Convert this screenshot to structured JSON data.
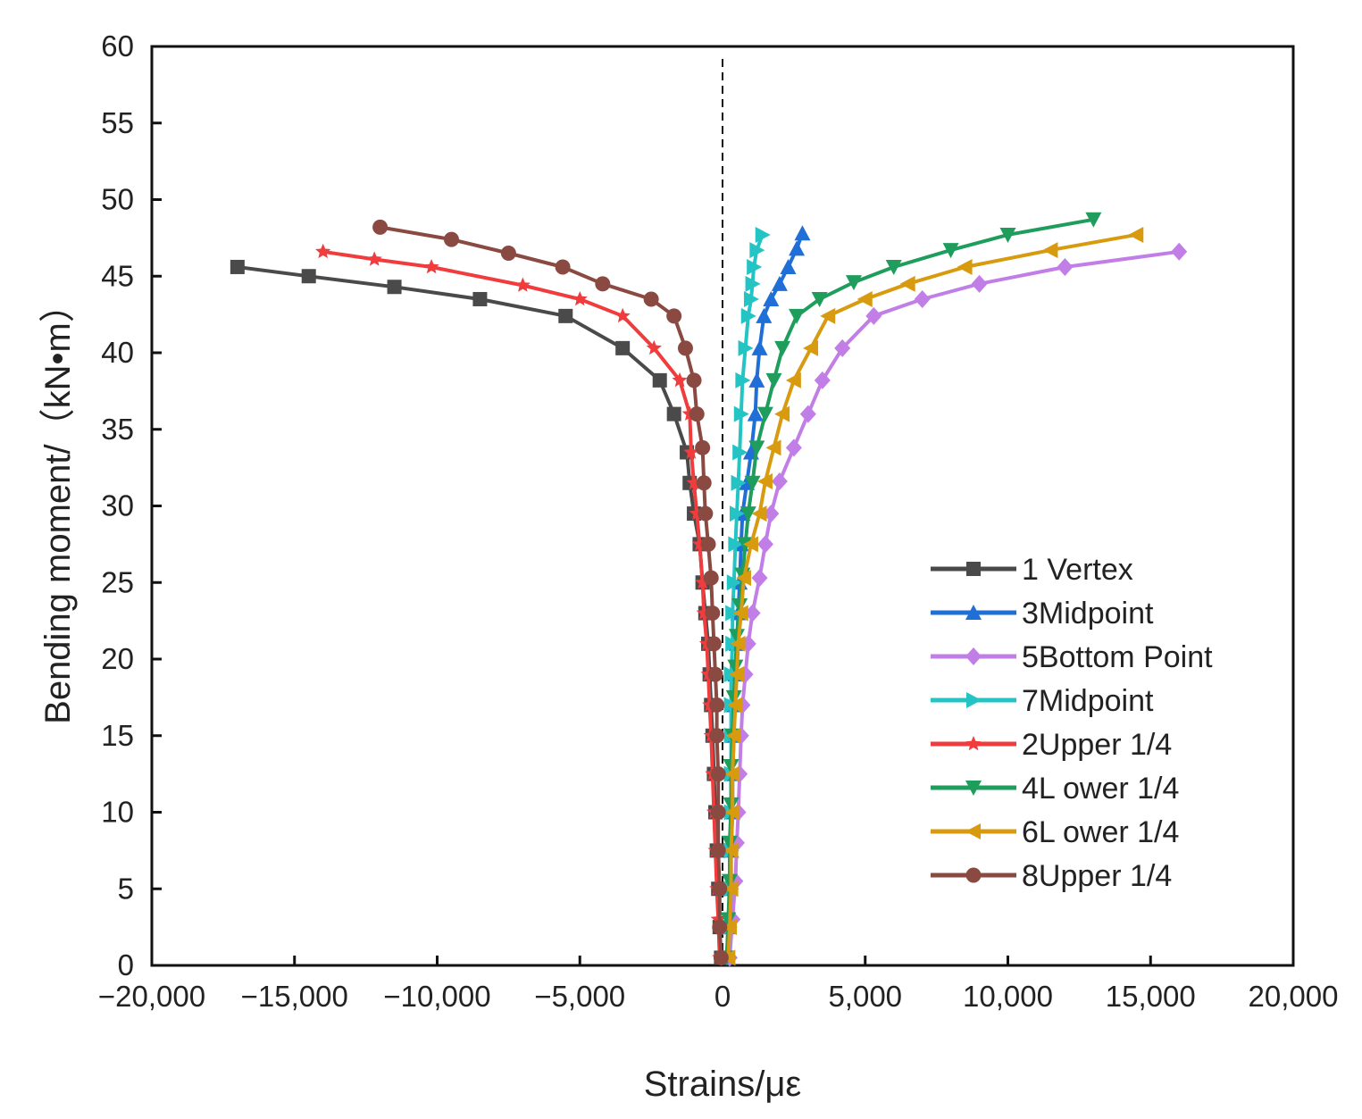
{
  "chart_data": {
    "type": "line",
    "xlabel": "Strains/με",
    "ylabel": "Bending moment/（kN•m）",
    "xlim": [
      -20000,
      20000
    ],
    "ylim": [
      0,
      60
    ],
    "x_ticks": [
      -20000,
      -15000,
      -10000,
      -5000,
      0,
      5000,
      10000,
      15000,
      20000
    ],
    "x_tick_labels": [
      "−20,000",
      "−15,000",
      "−10,000",
      "−5,000",
      "0",
      "5,000",
      "10,000",
      "15,000",
      "20,000"
    ],
    "y_ticks": [
      0,
      5,
      10,
      15,
      20,
      25,
      30,
      35,
      40,
      45,
      50,
      55,
      60
    ],
    "y_tick_labels": [
      "0",
      "5",
      "10",
      "15",
      "20",
      "25",
      "30",
      "35",
      "40",
      "45",
      "50",
      "55",
      "60"
    ],
    "zero_line": "dashed vertical line at 0 strain",
    "legend_position": "lower-right",
    "series": [
      {
        "name": "1 Vertex",
        "color": "#4a4a4a",
        "marker": "square",
        "points": [
          [
            -50,
            0.5
          ],
          [
            -100,
            2.5
          ],
          [
            -150,
            5
          ],
          [
            -200,
            7.5
          ],
          [
            -250,
            10
          ],
          [
            -300,
            12.5
          ],
          [
            -350,
            15
          ],
          [
            -400,
            17
          ],
          [
            -450,
            19
          ],
          [
            -500,
            21
          ],
          [
            -600,
            23
          ],
          [
            -700,
            25
          ],
          [
            -800,
            27.5
          ],
          [
            -1000,
            29.5
          ],
          [
            -1150,
            31.5
          ],
          [
            -1250,
            33.5
          ],
          [
            -1700,
            36
          ],
          [
            -2200,
            38.2
          ],
          [
            -3500,
            40.3
          ],
          [
            -5500,
            42.4
          ],
          [
            -8500,
            43.5
          ],
          [
            -11500,
            44.3
          ],
          [
            -14500,
            45
          ],
          [
            -17000,
            45.6
          ]
        ]
      },
      {
        "name": "3Midpoint",
        "color": "#1f6fd6",
        "marker": "triangle-up",
        "points": [
          [
            150,
            0.5
          ],
          [
            200,
            2.5
          ],
          [
            250,
            5
          ],
          [
            300,
            7.5
          ],
          [
            350,
            10
          ],
          [
            350,
            12.5
          ],
          [
            400,
            15
          ],
          [
            400,
            17
          ],
          [
            450,
            19
          ],
          [
            500,
            21
          ],
          [
            550,
            23
          ],
          [
            600,
            25
          ],
          [
            650,
            27.5
          ],
          [
            700,
            29.5
          ],
          [
            850,
            31.5
          ],
          [
            1000,
            33.5
          ],
          [
            1150,
            36
          ],
          [
            1200,
            38.2
          ],
          [
            1300,
            40.3
          ],
          [
            1450,
            42.4
          ],
          [
            1700,
            43.5
          ],
          [
            2000,
            44.5
          ],
          [
            2300,
            45.6
          ],
          [
            2600,
            46.8
          ],
          [
            2800,
            47.8
          ]
        ]
      },
      {
        "name": "5Bottom Point",
        "color": "#c07ee6",
        "marker": "diamond",
        "points": [
          [
            250,
            0.5
          ],
          [
            350,
            3
          ],
          [
            450,
            5.5
          ],
          [
            500,
            8
          ],
          [
            550,
            10
          ],
          [
            600,
            12.5
          ],
          [
            650,
            15
          ],
          [
            700,
            17
          ],
          [
            800,
            19
          ],
          [
            900,
            21
          ],
          [
            1050,
            23
          ],
          [
            1300,
            25.3
          ],
          [
            1500,
            27.5
          ],
          [
            1700,
            29.5
          ],
          [
            2000,
            31.6
          ],
          [
            2500,
            33.8
          ],
          [
            3000,
            36
          ],
          [
            3500,
            38.2
          ],
          [
            4200,
            40.3
          ],
          [
            5300,
            42.4
          ],
          [
            7000,
            43.5
          ],
          [
            9000,
            44.5
          ],
          [
            12000,
            45.6
          ],
          [
            16000,
            46.6
          ]
        ]
      },
      {
        "name": "7Midpoint",
        "color": "#25c4c4",
        "marker": "triangle-right",
        "points": [
          [
            200,
            0.5
          ],
          [
            250,
            2.5
          ],
          [
            300,
            5
          ],
          [
            300,
            7.5
          ],
          [
            300,
            10
          ],
          [
            300,
            12.5
          ],
          [
            300,
            15
          ],
          [
            300,
            17
          ],
          [
            300,
            19
          ],
          [
            350,
            21
          ],
          [
            350,
            23
          ],
          [
            400,
            25
          ],
          [
            450,
            27.5
          ],
          [
            500,
            29.5
          ],
          [
            550,
            31.5
          ],
          [
            600,
            33.5
          ],
          [
            650,
            36
          ],
          [
            700,
            38.2
          ],
          [
            800,
            40.3
          ],
          [
            900,
            42.4
          ],
          [
            1000,
            43.5
          ],
          [
            1050,
            44.5
          ],
          [
            1100,
            45.6
          ],
          [
            1200,
            46.7
          ],
          [
            1400,
            47.7
          ]
        ]
      },
      {
        "name": "2Upper 1/4",
        "color": "#f03c3c",
        "marker": "star",
        "points": [
          [
            -100,
            0.5
          ],
          [
            -150,
            3
          ],
          [
            -200,
            5
          ],
          [
            -250,
            7.5
          ],
          [
            -300,
            10
          ],
          [
            -350,
            12.5
          ],
          [
            -400,
            15
          ],
          [
            -450,
            17
          ],
          [
            -500,
            19
          ],
          [
            -550,
            21
          ],
          [
            -650,
            23
          ],
          [
            -700,
            25
          ],
          [
            -800,
            27.5
          ],
          [
            -900,
            29.5
          ],
          [
            -1000,
            31.5
          ],
          [
            -1100,
            33.5
          ],
          [
            -1150,
            36
          ],
          [
            -1500,
            38.2
          ],
          [
            -2400,
            40.3
          ],
          [
            -3500,
            42.4
          ],
          [
            -5000,
            43.5
          ],
          [
            -7000,
            44.4
          ],
          [
            -10200,
            45.6
          ],
          [
            -12200,
            46.1
          ],
          [
            -14000,
            46.6
          ]
        ]
      },
      {
        "name": "4L ower 1/4",
        "color": "#1f9d5c",
        "marker": "triangle-down",
        "points": [
          [
            150,
            0.5
          ],
          [
            200,
            3
          ],
          [
            250,
            5.5
          ],
          [
            250,
            8
          ],
          [
            300,
            10.5
          ],
          [
            300,
            13
          ],
          [
            350,
            15
          ],
          [
            400,
            17.5
          ],
          [
            450,
            19.5
          ],
          [
            500,
            21.5
          ],
          [
            600,
            23.5
          ],
          [
            700,
            25.5
          ],
          [
            800,
            27.5
          ],
          [
            900,
            29.5
          ],
          [
            1050,
            31.5
          ],
          [
            1200,
            33.8
          ],
          [
            1500,
            36
          ],
          [
            1800,
            38.2
          ],
          [
            2100,
            40.3
          ],
          [
            2600,
            42.4
          ],
          [
            3400,
            43.5
          ],
          [
            4600,
            44.6
          ],
          [
            6000,
            45.6
          ],
          [
            8000,
            46.7
          ],
          [
            10000,
            47.7
          ],
          [
            13000,
            48.7
          ]
        ]
      },
      {
        "name": "6L ower 1/4",
        "color": "#d89a0e",
        "marker": "triangle-left",
        "points": [
          [
            200,
            0.5
          ],
          [
            250,
            2.5
          ],
          [
            300,
            5
          ],
          [
            300,
            7.5
          ],
          [
            350,
            10
          ],
          [
            350,
            12.5
          ],
          [
            400,
            15
          ],
          [
            450,
            17
          ],
          [
            500,
            19
          ],
          [
            550,
            21
          ],
          [
            650,
            23
          ],
          [
            750,
            25.3
          ],
          [
            1000,
            27.5
          ],
          [
            1300,
            29.5
          ],
          [
            1500,
            31.6
          ],
          [
            1800,
            33.8
          ],
          [
            2100,
            36
          ],
          [
            2500,
            38.2
          ],
          [
            3100,
            40.3
          ],
          [
            3700,
            42.4
          ],
          [
            5000,
            43.5
          ],
          [
            6500,
            44.5
          ],
          [
            8500,
            45.6
          ],
          [
            11500,
            46.7
          ],
          [
            14500,
            47.7
          ]
        ]
      },
      {
        "name": "8Upper 1/4",
        "color": "#8a4a42",
        "marker": "circle",
        "points": [
          [
            -50,
            0.5
          ],
          [
            -100,
            2.5
          ],
          [
            -100,
            5
          ],
          [
            -150,
            7.5
          ],
          [
            -150,
            10
          ],
          [
            -150,
            12.5
          ],
          [
            -200,
            15
          ],
          [
            -200,
            17
          ],
          [
            -250,
            19
          ],
          [
            -300,
            21
          ],
          [
            -350,
            23
          ],
          [
            -400,
            25.3
          ],
          [
            -500,
            27.5
          ],
          [
            -600,
            29.5
          ],
          [
            -650,
            31.5
          ],
          [
            -700,
            33.8
          ],
          [
            -900,
            36
          ],
          [
            -1000,
            38.2
          ],
          [
            -1300,
            40.3
          ],
          [
            -1700,
            42.4
          ],
          [
            -2500,
            43.5
          ],
          [
            -4200,
            44.5
          ],
          [
            -5600,
            45.6
          ],
          [
            -7500,
            46.5
          ],
          [
            -9500,
            47.4
          ],
          [
            -12000,
            48.2
          ]
        ]
      }
    ]
  }
}
